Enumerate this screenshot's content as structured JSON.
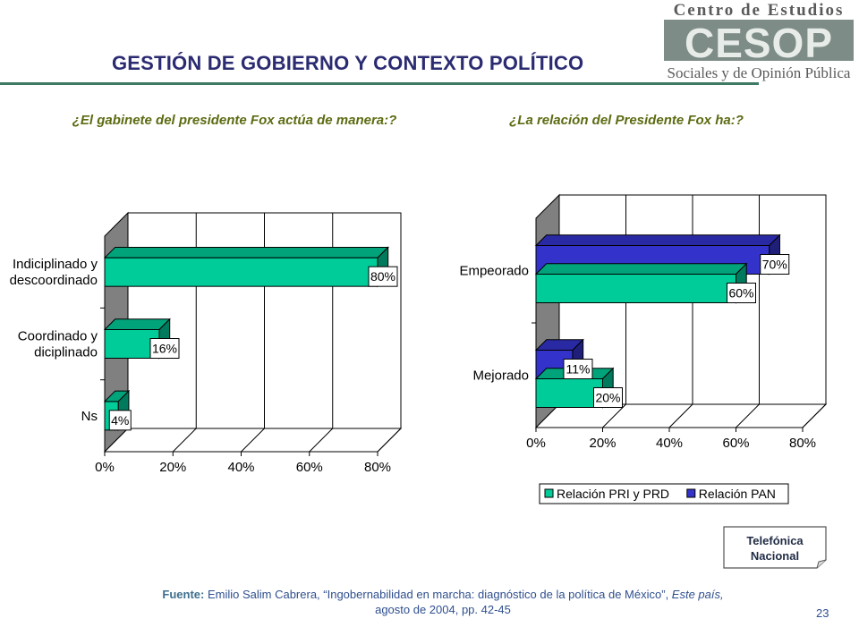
{
  "slide": {
    "title": "GESTIÓN DE GOBIERNO Y CONTEXTO POLÍTICO",
    "page_number": "23",
    "colors": {
      "title": "#2b2b72",
      "question": "#5d6b12",
      "teal_bar": "#00cc99",
      "blue_bar": "#3333cc",
      "rule": "#3f7a64"
    }
  },
  "logo": {
    "top_text": "Centro de Estudios",
    "mark_text": "CESOP",
    "bottom_text": "Sociales y de Opinión Pública"
  },
  "badge": {
    "line1": "Telefónica",
    "line2": "Nacional"
  },
  "source": {
    "label": "Fuente:",
    "author": " Emilio Salim Cabrera, ",
    "article": "“Ingobernabilidad en marcha: diagnóstico de la política de México”, ",
    "publication": "Este país,",
    "details": "agosto de 2004, pp. 42-45"
  },
  "chart_data": [
    {
      "type": "bar",
      "orientation": "horizontal",
      "title": "¿El gabinete del presidente Fox actúa de manera:?",
      "categories": [
        "Indiciplinado y descoordinado",
        "Coordinado y diciplinado",
        "Ns"
      ],
      "category_lines": [
        [
          "Indiciplinado y",
          "descoordinado"
        ],
        [
          "Coordinado y",
          "diciplinado"
        ],
        [
          "Ns"
        ]
      ],
      "series": [
        {
          "values": [
            80,
            16,
            4
          ],
          "labels": [
            "80%",
            "16%",
            "4%"
          ],
          "color": "#00cc99"
        }
      ],
      "xlim": [
        0,
        80
      ],
      "ticks": [
        "0%",
        "20%",
        "40%",
        "60%",
        "80%"
      ],
      "grid": true
    },
    {
      "type": "bar",
      "orientation": "horizontal",
      "title": "¿La relación del Presidente Fox ha:?",
      "categories": [
        "Empeorado",
        "Mejorado"
      ],
      "series": [
        {
          "name": "Relación PRI y PRD",
          "values": [
            60,
            20
          ],
          "labels": [
            "60%",
            "20%"
          ],
          "color": "#00cc99"
        },
        {
          "name": "Relación PAN",
          "values": [
            70,
            11
          ],
          "labels": [
            "70%",
            "11%"
          ],
          "color": "#3333cc"
        }
      ],
      "xlim": [
        0,
        80
      ],
      "ticks": [
        "0%",
        "20%",
        "40%",
        "60%",
        "80%"
      ],
      "grid": true,
      "legend": "bottom"
    }
  ]
}
